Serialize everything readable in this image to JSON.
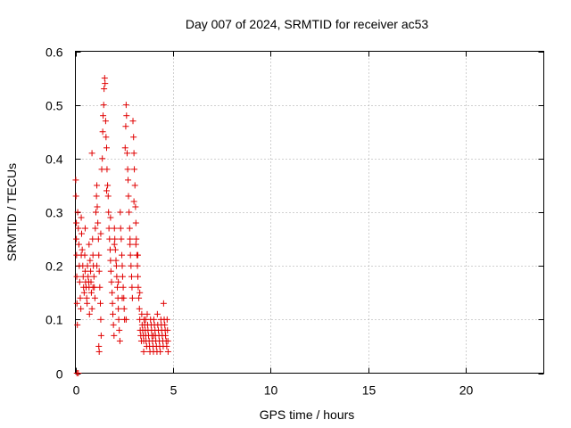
{
  "chart_data": {
    "type": "scatter",
    "title": "Day 007 of 2024, SRMTID for receiver ac53",
    "xlabel": "GPS time / hours",
    "ylabel": "SRMTID / TECUs",
    "xlim": [
      0,
      24
    ],
    "ylim": [
      0,
      0.6
    ],
    "x_ticks": [
      0,
      5,
      10,
      15,
      20
    ],
    "x_tick_labels": [
      "0",
      "5",
      "10",
      "15",
      "20"
    ],
    "y_ticks": [
      0,
      0.1,
      0.2,
      0.3,
      0.4,
      0.5,
      0.6
    ],
    "y_tick_labels": [
      "0",
      "0.1",
      "0.2",
      "0.3",
      "0.4",
      "0.5",
      "0.6"
    ],
    "grid": true,
    "marker": "plus",
    "series": [
      {
        "name": "SRMTID",
        "color": "#e00000",
        "points": [
          [
            0.02,
            0.36
          ],
          [
            0.03,
            0.33
          ],
          [
            0.05,
            0.28
          ],
          [
            0.05,
            0.25
          ],
          [
            0.06,
            0.22
          ],
          [
            0.07,
            0.18
          ],
          [
            0.08,
            0.13
          ],
          [
            0.1,
            0.09
          ],
          [
            0.08,
            0.0
          ],
          [
            0.15,
            0.0
          ],
          [
            0.12,
            0.3
          ],
          [
            0.15,
            0.27
          ],
          [
            0.18,
            0.24
          ],
          [
            0.2,
            0.2
          ],
          [
            0.22,
            0.17
          ],
          [
            0.25,
            0.14
          ],
          [
            0.28,
            0.12
          ],
          [
            0.3,
            0.29
          ],
          [
            0.32,
            0.26
          ],
          [
            0.35,
            0.23
          ],
          [
            0.38,
            0.2
          ],
          [
            0.4,
            0.18
          ],
          [
            0.42,
            0.16
          ],
          [
            0.45,
            0.15
          ],
          [
            0.48,
            0.22
          ],
          [
            0.5,
            0.19
          ],
          [
            0.52,
            0.17
          ],
          [
            0.55,
            0.16
          ],
          [
            0.58,
            0.14
          ],
          [
            0.6,
            0.13
          ],
          [
            0.62,
            0.2
          ],
          [
            0.65,
            0.18
          ],
          [
            0.68,
            0.17
          ],
          [
            0.7,
            0.16
          ],
          [
            0.72,
            0.11
          ],
          [
            0.75,
            0.21
          ],
          [
            0.78,
            0.19
          ],
          [
            0.8,
            0.17
          ],
          [
            0.82,
            0.15
          ],
          [
            0.85,
            0.12
          ],
          [
            0.88,
            0.25
          ],
          [
            0.9,
            0.22
          ],
          [
            0.92,
            0.2
          ],
          [
            0.95,
            0.18
          ],
          [
            0.97,
            0.16
          ],
          [
            1.0,
            0.14
          ],
          [
            0.85,
            0.41
          ],
          [
            1.02,
            0.27
          ],
          [
            1.05,
            0.3
          ],
          [
            1.08,
            0.33
          ],
          [
            1.1,
            0.35
          ],
          [
            1.12,
            0.31
          ],
          [
            1.15,
            0.28
          ],
          [
            1.18,
            0.25
          ],
          [
            1.2,
            0.22
          ],
          [
            1.22,
            0.19
          ],
          [
            1.25,
            0.16
          ],
          [
            1.28,
            0.13
          ],
          [
            1.3,
            0.1
          ],
          [
            1.32,
            0.07
          ],
          [
            1.2,
            0.05
          ],
          [
            1.22,
            0.04
          ],
          [
            1.35,
            0.38
          ],
          [
            1.38,
            0.4
          ],
          [
            1.4,
            0.45
          ],
          [
            1.42,
            0.48
          ],
          [
            1.45,
            0.5
          ],
          [
            1.47,
            0.53
          ],
          [
            1.5,
            0.55
          ],
          [
            1.52,
            0.54
          ],
          [
            1.55,
            0.47
          ],
          [
            1.57,
            0.44
          ],
          [
            1.6,
            0.42
          ],
          [
            1.62,
            0.38
          ],
          [
            1.65,
            0.35
          ],
          [
            1.68,
            0.33
          ],
          [
            1.7,
            0.3
          ],
          [
            1.72,
            0.27
          ],
          [
            1.75,
            0.25
          ],
          [
            1.78,
            0.23
          ],
          [
            1.8,
            0.21
          ],
          [
            1.82,
            0.19
          ],
          [
            1.85,
            0.17
          ],
          [
            1.88,
            0.15
          ],
          [
            1.9,
            0.13
          ],
          [
            1.92,
            0.11
          ],
          [
            1.95,
            0.09
          ],
          [
            1.98,
            0.07
          ],
          [
            2.0,
            0.27
          ],
          [
            2.02,
            0.25
          ],
          [
            2.05,
            0.23
          ],
          [
            2.08,
            0.21
          ],
          [
            2.1,
            0.2
          ],
          [
            2.12,
            0.18
          ],
          [
            2.15,
            0.16
          ],
          [
            2.18,
            0.14
          ],
          [
            2.2,
            0.12
          ],
          [
            2.22,
            0.1
          ],
          [
            2.25,
            0.08
          ],
          [
            2.28,
            0.06
          ],
          [
            2.3,
            0.3
          ],
          [
            2.32,
            0.27
          ],
          [
            2.35,
            0.25
          ],
          [
            2.38,
            0.22
          ],
          [
            2.4,
            0.2
          ],
          [
            2.42,
            0.18
          ],
          [
            2.45,
            0.16
          ],
          [
            2.48,
            0.14
          ],
          [
            2.5,
            0.12
          ],
          [
            2.52,
            0.1
          ],
          [
            2.55,
            0.42
          ],
          [
            2.58,
            0.46
          ],
          [
            2.6,
            0.5
          ],
          [
            2.62,
            0.48
          ],
          [
            2.65,
            0.41
          ],
          [
            2.68,
            0.38
          ],
          [
            2.7,
            0.36
          ],
          [
            2.72,
            0.33
          ],
          [
            2.75,
            0.3
          ],
          [
            2.78,
            0.27
          ],
          [
            2.8,
            0.25
          ],
          [
            2.82,
            0.22
          ],
          [
            2.85,
            0.2
          ],
          [
            2.88,
            0.18
          ],
          [
            2.9,
            0.16
          ],
          [
            2.92,
            0.14
          ],
          [
            2.95,
            0.47
          ],
          [
            2.98,
            0.44
          ],
          [
            3.0,
            0.41
          ],
          [
            3.02,
            0.38
          ],
          [
            3.05,
            0.35
          ],
          [
            3.08,
            0.31
          ],
          [
            3.1,
            0.28
          ],
          [
            3.12,
            0.25
          ],
          [
            3.15,
            0.22
          ],
          [
            3.18,
            0.2
          ],
          [
            3.2,
            0.18
          ],
          [
            3.22,
            0.16
          ],
          [
            3.25,
            0.14
          ],
          [
            3.28,
            0.12
          ],
          [
            3.3,
            0.1
          ],
          [
            3.32,
            0.08
          ],
          [
            3.35,
            0.07
          ],
          [
            3.38,
            0.06
          ],
          [
            3.4,
            0.11
          ],
          [
            3.42,
            0.09
          ],
          [
            3.45,
            0.08
          ],
          [
            3.48,
            0.07
          ],
          [
            3.5,
            0.06
          ],
          [
            3.52,
            0.1
          ],
          [
            3.55,
            0.09
          ],
          [
            3.58,
            0.08
          ],
          [
            3.6,
            0.07
          ],
          [
            3.62,
            0.06
          ],
          [
            3.65,
            0.05
          ],
          [
            3.68,
            0.11
          ],
          [
            3.7,
            0.09
          ],
          [
            3.72,
            0.08
          ],
          [
            3.75,
            0.07
          ],
          [
            3.78,
            0.06
          ],
          [
            3.8,
            0.05
          ],
          [
            3.82,
            0.04
          ],
          [
            3.85,
            0.1
          ],
          [
            3.88,
            0.09
          ],
          [
            3.9,
            0.08
          ],
          [
            3.92,
            0.07
          ],
          [
            3.95,
            0.06
          ],
          [
            3.98,
            0.05
          ],
          [
            4.0,
            0.04
          ],
          [
            4.02,
            0.1
          ],
          [
            4.05,
            0.09
          ],
          [
            4.08,
            0.08
          ],
          [
            4.1,
            0.07
          ],
          [
            4.12,
            0.06
          ],
          [
            4.15,
            0.05
          ],
          [
            4.18,
            0.04
          ],
          [
            4.2,
            0.11
          ],
          [
            4.22,
            0.09
          ],
          [
            4.25,
            0.08
          ],
          [
            4.28,
            0.07
          ],
          [
            4.3,
            0.06
          ],
          [
            4.32,
            0.05
          ],
          [
            4.35,
            0.04
          ],
          [
            4.38,
            0.1
          ],
          [
            4.4,
            0.09
          ],
          [
            4.42,
            0.08
          ],
          [
            4.45,
            0.07
          ],
          [
            4.48,
            0.06
          ],
          [
            4.5,
            0.05
          ],
          [
            4.52,
            0.13
          ],
          [
            4.55,
            0.1
          ],
          [
            4.58,
            0.09
          ],
          [
            4.6,
            0.08
          ],
          [
            4.62,
            0.07
          ],
          [
            4.65,
            0.06
          ],
          [
            4.68,
            0.05
          ],
          [
            4.7,
            0.1
          ],
          [
            4.72,
            0.08
          ],
          [
            4.74,
            0.06
          ],
          [
            4.75,
            0.04
          ],
          [
            0.3,
            0.22
          ],
          [
            0.5,
            0.27
          ],
          [
            0.7,
            0.24
          ],
          [
            0.9,
            0.16
          ],
          [
            1.1,
            0.2
          ],
          [
            1.3,
            0.26
          ],
          [
            1.6,
            0.34
          ],
          [
            1.8,
            0.29
          ],
          [
            2.0,
            0.24
          ],
          [
            2.2,
            0.17
          ],
          [
            2.4,
            0.14
          ],
          [
            2.6,
            0.1
          ],
          [
            2.8,
            0.24
          ],
          [
            3.0,
            0.32
          ],
          [
            3.1,
            0.24
          ],
          [
            3.2,
            0.22
          ],
          [
            3.3,
            0.15
          ],
          [
            3.5,
            0.04
          ],
          [
            3.6,
            0.1
          ],
          [
            4.0,
            0.07
          ]
        ]
      }
    ]
  }
}
